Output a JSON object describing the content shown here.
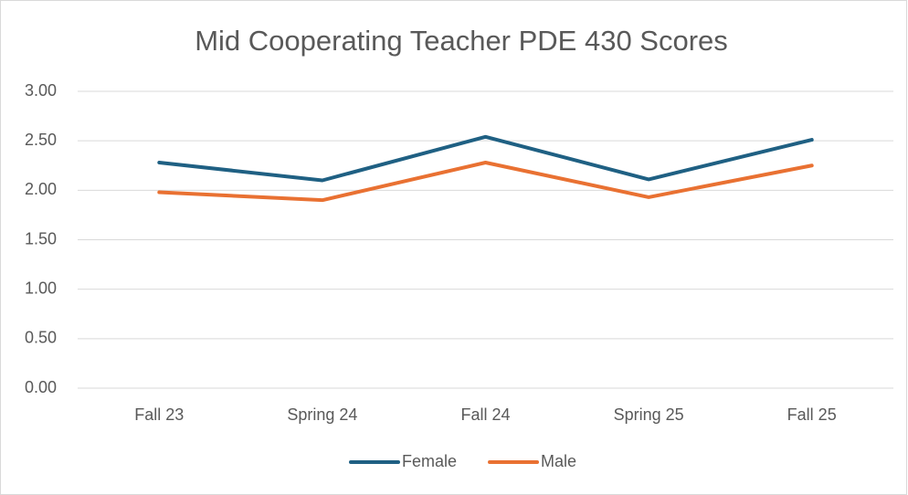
{
  "chart_data": {
    "type": "line",
    "title": "Mid Cooperating Teacher PDE 430 Scores",
    "categories": [
      "Fall 23",
      "Spring 24",
      "Fall 24",
      "Spring 25",
      "Fall 25"
    ],
    "series": [
      {
        "name": "Female",
        "color": "#1f6083",
        "values": [
          2.28,
          2.1,
          2.54,
          2.11,
          2.51
        ]
      },
      {
        "name": "Male",
        "color": "#e97132",
        "values": [
          1.98,
          1.9,
          2.28,
          1.93,
          2.25
        ]
      }
    ],
    "ylim": [
      0,
      3
    ],
    "yticks": [
      {
        "value": 0,
        "label": "0.00"
      },
      {
        "value": 0.5,
        "label": "0.50"
      },
      {
        "value": 1,
        "label": "1.00"
      },
      {
        "value": 1.5,
        "label": "1.50"
      },
      {
        "value": 2,
        "label": "2.00"
      },
      {
        "value": 2.5,
        "label": "2.50"
      },
      {
        "value": 3,
        "label": "3.00"
      }
    ],
    "grid": true,
    "legend": "bottom"
  }
}
